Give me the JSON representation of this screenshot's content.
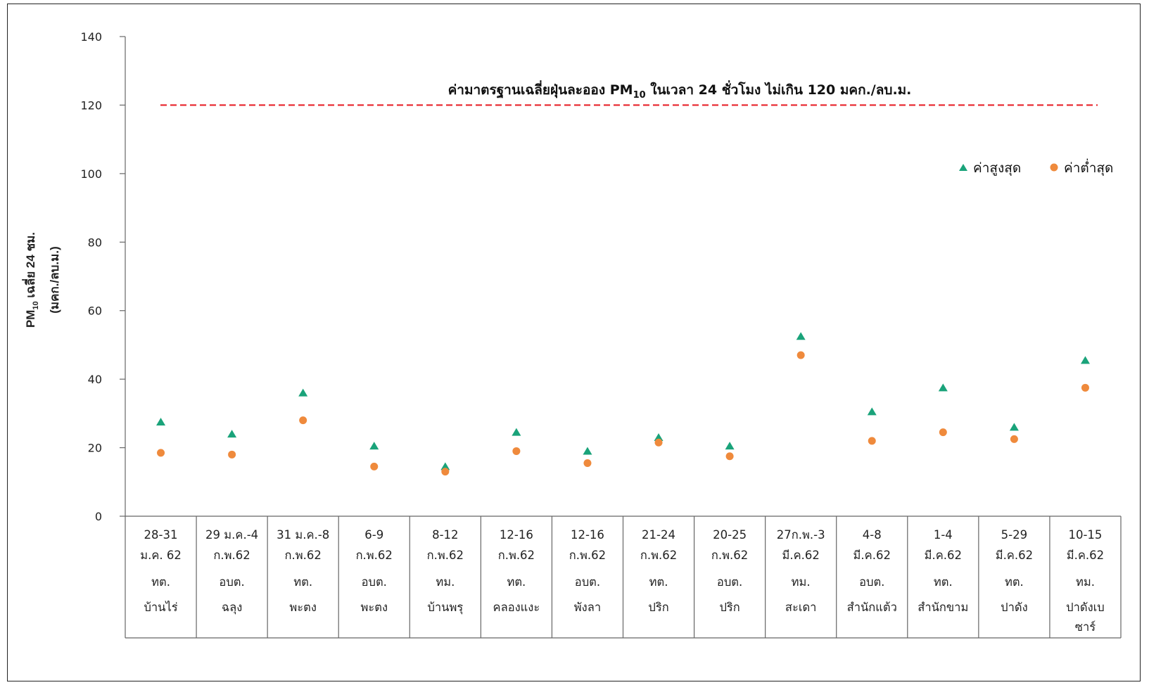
{
  "chart_data": {
    "type": "scatter",
    "ylabel_line1_main": "PM",
    "ylabel_line1_sub": "10",
    "ylabel_line1_rest": " เฉลี่ย 24 ชม.",
    "ylabel_line2": "(มคก./ลบ.ม.)",
    "ylim": [
      0,
      140
    ],
    "yticks": [
      0,
      20,
      40,
      60,
      80,
      100,
      120,
      140
    ],
    "standard": {
      "value": 120,
      "label_pre": "ค่ามาตรฐานเฉลี่ยฝุ่นละออง PM",
      "label_sub": "10",
      "label_post": " ในเวลา 24 ชั่วโมง ไม่เกิน 120 มคก./ลบ.ม.",
      "color": "#e8232a"
    },
    "legend_position": "top-right",
    "categories": [
      {
        "date1": "28-31",
        "date2": "ม.ค. 62",
        "place1": "ทต.",
        "place2": "บ้านไร่",
        "place3": ""
      },
      {
        "date1": "29 ม.ค.-4",
        "date2": "ก.พ.62",
        "place1": "อบต.",
        "place2": "ฉลุง",
        "place3": ""
      },
      {
        "date1": "31 ม.ค.-8",
        "date2": "ก.พ.62",
        "place1": "ทต.",
        "place2": "พะตง",
        "place3": ""
      },
      {
        "date1": "6-9",
        "date2": "ก.พ.62",
        "place1": "อบต.",
        "place2": "พะตง",
        "place3": ""
      },
      {
        "date1": "8-12",
        "date2": "ก.พ.62",
        "place1": "ทม.",
        "place2": "บ้านพรุ",
        "place3": ""
      },
      {
        "date1": "12-16",
        "date2": "ก.พ.62",
        "place1": "ทต.",
        "place2": "คลองแงะ",
        "place3": ""
      },
      {
        "date1": "12-16",
        "date2": "ก.พ.62",
        "place1": "อบต.",
        "place2": "พังลา",
        "place3": ""
      },
      {
        "date1": "21-24",
        "date2": "ก.พ.62",
        "place1": "ทต.",
        "place2": "ปริก",
        "place3": ""
      },
      {
        "date1": "20-25",
        "date2": "ก.พ.62",
        "place1": "อบต.",
        "place2": "ปริก",
        "place3": ""
      },
      {
        "date1": "27ก.พ.-3",
        "date2": "มี.ค.62",
        "place1": "ทม.",
        "place2": "สะเดา",
        "place3": ""
      },
      {
        "date1": "4-8",
        "date2": "มี.ค.62",
        "place1": "อบต.",
        "place2": "สำนักแต้ว",
        "place3": ""
      },
      {
        "date1": "1-4",
        "date2": "มี.ค.62",
        "place1": "ทต.",
        "place2": "สำนักขาม",
        "place3": ""
      },
      {
        "date1": "5-29",
        "date2": "มี.ค.62",
        "place1": "ทต.",
        "place2": "ปาดัง",
        "place3": ""
      },
      {
        "date1": "10-15",
        "date2": "มี.ค.62",
        "place1": "ทม.",
        "place2": "ปาดังเบ",
        "place3": "ซาร์"
      }
    ],
    "series": [
      {
        "name": "ค่าสูงสุด",
        "marker": "triangle",
        "color": "#1aa37a",
        "values": [
          27.5,
          24,
          36,
          20.5,
          14.5,
          24.5,
          19,
          23,
          20.5,
          52.5,
          30.5,
          37.5,
          26,
          45.5
        ]
      },
      {
        "name": "ค่าต่ำสุด",
        "marker": "circle",
        "color": "#ef8a3c",
        "values": [
          18.5,
          18,
          28,
          14.5,
          13,
          19,
          15.5,
          21.5,
          17.5,
          47,
          22,
          24.5,
          22.5,
          37.5
        ]
      }
    ]
  }
}
